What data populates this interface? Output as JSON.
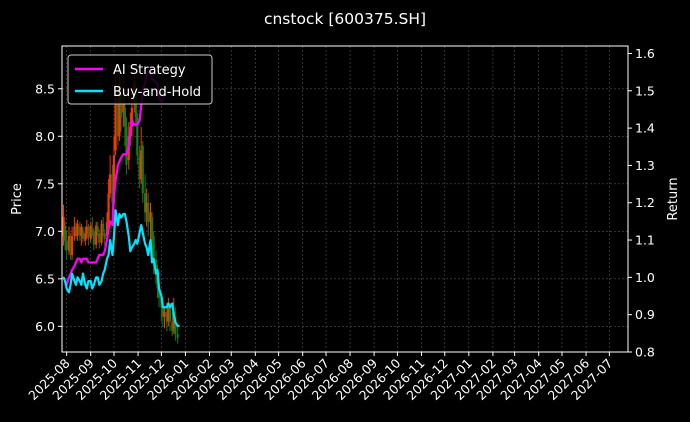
{
  "chart_data": {
    "type": "line",
    "title": "cnstock [600375.SH]",
    "ylabel": "Price",
    "y2label": "Return",
    "ylim": [
      5.73,
      8.95
    ],
    "y2lim": [
      0.8,
      1.62
    ],
    "xlim": [
      "2025-07-26",
      "2027-07-25"
    ],
    "grid": true,
    "legend_position": "top-left",
    "x_tick_labels": [
      "2025-08",
      "2025-09",
      "2025-10",
      "2025-11",
      "2025-12",
      "2026-01",
      "2026-02",
      "2026-03",
      "2026-04",
      "2026-05",
      "2026-06",
      "2026-07",
      "2026-08",
      "2026-09",
      "2026-10",
      "2026-11",
      "2026-12",
      "2027-01",
      "2027-02",
      "2027-03",
      "2027-04",
      "2027-05",
      "2027-06",
      "2027-07"
    ],
    "y_ticks": [
      6.0,
      6.5,
      7.0,
      7.5,
      8.0,
      8.5
    ],
    "y_tick_labels": [
      "6.0",
      "6.5",
      "7.0",
      "7.5",
      "8.0",
      "8.5"
    ],
    "y2_ticks": [
      0.8,
      0.9,
      1.0,
      1.1,
      1.2,
      1.3,
      1.4,
      1.5,
      1.6
    ],
    "y2_tick_labels": [
      "0.8",
      "0.9",
      "1.0",
      "1.1",
      "1.2",
      "1.3",
      "1.4",
      "1.5",
      "1.6"
    ],
    "candles": [
      {
        "date": "2025-07-28",
        "open": 6.95,
        "close": 7.15,
        "high": 7.28,
        "low": 6.85
      },
      {
        "date": "2025-07-30",
        "open": 7.05,
        "close": 6.9,
        "high": 7.1,
        "low": 6.8
      },
      {
        "date": "2025-08-01",
        "open": 6.9,
        "close": 6.8,
        "high": 7.0,
        "low": 6.7
      },
      {
        "date": "2025-08-04",
        "open": 6.8,
        "close": 6.95,
        "high": 7.05,
        "low": 6.75
      },
      {
        "date": "2025-08-06",
        "open": 6.92,
        "close": 6.78,
        "high": 6.98,
        "low": 6.7
      },
      {
        "date": "2025-08-08",
        "open": 6.75,
        "close": 6.95,
        "high": 7.05,
        "low": 6.7
      },
      {
        "date": "2025-08-11",
        "open": 6.95,
        "close": 7.05,
        "high": 7.15,
        "low": 6.9
      },
      {
        "date": "2025-08-13",
        "open": 7.05,
        "close": 6.98,
        "high": 7.1,
        "low": 6.92
      },
      {
        "date": "2025-08-15",
        "open": 6.95,
        "close": 7.08,
        "high": 7.12,
        "low": 6.9
      },
      {
        "date": "2025-08-18",
        "open": 7.05,
        "close": 6.96,
        "high": 7.1,
        "low": 6.9
      },
      {
        "date": "2025-08-20",
        "open": 6.95,
        "close": 7.04,
        "high": 7.08,
        "low": 6.85
      },
      {
        "date": "2025-08-22",
        "open": 7.0,
        "close": 6.92,
        "high": 7.05,
        "low": 6.88
      },
      {
        "date": "2025-08-25",
        "open": 6.9,
        "close": 6.98,
        "high": 7.05,
        "low": 6.85
      },
      {
        "date": "2025-08-27",
        "open": 6.98,
        "close": 7.05,
        "high": 7.12,
        "low": 6.92
      },
      {
        "date": "2025-08-29",
        "open": 7.05,
        "close": 6.94,
        "high": 7.08,
        "low": 6.85
      },
      {
        "date": "2025-09-01",
        "open": 6.92,
        "close": 7.06,
        "high": 7.1,
        "low": 6.88
      },
      {
        "date": "2025-09-03",
        "open": 7.02,
        "close": 7.0,
        "high": 7.15,
        "low": 6.95
      },
      {
        "date": "2025-09-05",
        "open": 7.0,
        "close": 6.86,
        "high": 7.04,
        "low": 6.8
      },
      {
        "date": "2025-09-08",
        "open": 6.86,
        "close": 7.06,
        "high": 7.1,
        "low": 6.82
      },
      {
        "date": "2025-09-10",
        "open": 7.05,
        "close": 7.0,
        "high": 7.1,
        "low": 6.95
      },
      {
        "date": "2025-09-12",
        "open": 6.98,
        "close": 6.88,
        "high": 7.02,
        "low": 6.82
      },
      {
        "date": "2025-09-15",
        "open": 6.88,
        "close": 7.08,
        "high": 7.12,
        "low": 6.85
      },
      {
        "date": "2025-09-17",
        "open": 7.08,
        "close": 7.0,
        "high": 7.15,
        "low": 6.95
      },
      {
        "date": "2025-09-19",
        "open": 6.98,
        "close": 6.92,
        "high": 7.02,
        "low": 6.85
      },
      {
        "date": "2025-09-22",
        "open": 6.95,
        "close": 7.1,
        "high": 7.2,
        "low": 6.9
      },
      {
        "date": "2025-09-24",
        "open": 7.1,
        "close": 7.4,
        "high": 7.55,
        "low": 7.05
      },
      {
        "date": "2025-09-26",
        "open": 7.4,
        "close": 7.6,
        "high": 7.8,
        "low": 7.35
      },
      {
        "date": "2025-09-29",
        "open": 7.6,
        "close": 7.3,
        "high": 7.7,
        "low": 7.2
      },
      {
        "date": "2025-10-01",
        "open": 7.3,
        "close": 7.8,
        "high": 8.0,
        "low": 7.25
      },
      {
        "date": "2025-10-03",
        "open": 7.85,
        "close": 8.4,
        "high": 8.7,
        "low": 7.8
      },
      {
        "date": "2025-10-06",
        "open": 8.4,
        "close": 8.0,
        "high": 8.55,
        "low": 7.9
      },
      {
        "date": "2025-10-08",
        "open": 8.0,
        "close": 8.5,
        "high": 8.75,
        "low": 7.95
      },
      {
        "date": "2025-10-10",
        "open": 8.45,
        "close": 8.2,
        "high": 8.6,
        "low": 8.05
      },
      {
        "date": "2025-10-13",
        "open": 8.25,
        "close": 8.35,
        "high": 8.6,
        "low": 8.1
      },
      {
        "date": "2025-10-15",
        "open": 8.3,
        "close": 8.1,
        "high": 8.45,
        "low": 7.9
      },
      {
        "date": "2025-10-17",
        "open": 8.1,
        "close": 7.7,
        "high": 8.2,
        "low": 7.6
      },
      {
        "date": "2025-10-20",
        "open": 7.75,
        "close": 8.0,
        "high": 8.15,
        "low": 7.65
      },
      {
        "date": "2025-10-22",
        "open": 8.0,
        "close": 8.1,
        "high": 8.25,
        "low": 7.9
      },
      {
        "date": "2025-10-24",
        "open": 8.1,
        "close": 8.3,
        "high": 8.45,
        "low": 8.0
      },
      {
        "date": "2025-10-27",
        "open": 8.35,
        "close": 8.55,
        "high": 8.7,
        "low": 8.25
      },
      {
        "date": "2025-10-29",
        "open": 8.5,
        "close": 8.2,
        "high": 8.6,
        "low": 8.1
      },
      {
        "date": "2025-10-31",
        "open": 8.2,
        "close": 7.8,
        "high": 8.25,
        "low": 7.7
      },
      {
        "date": "2025-11-03",
        "open": 7.8,
        "close": 7.55,
        "high": 7.9,
        "low": 7.45
      },
      {
        "date": "2025-11-05",
        "open": 7.55,
        "close": 7.85,
        "high": 8.1,
        "low": 7.5
      },
      {
        "date": "2025-11-07",
        "open": 7.9,
        "close": 7.4,
        "high": 7.95,
        "low": 7.3
      },
      {
        "date": "2025-11-10",
        "open": 7.4,
        "close": 7.2,
        "high": 7.6,
        "low": 7.1
      },
      {
        "date": "2025-11-12",
        "open": 7.2,
        "close": 7.3,
        "high": 7.45,
        "low": 7.05
      },
      {
        "date": "2025-11-14",
        "open": 7.3,
        "close": 7.1,
        "high": 7.4,
        "low": 6.95
      },
      {
        "date": "2025-11-17",
        "open": 7.1,
        "close": 7.2,
        "high": 7.3,
        "low": 6.9
      },
      {
        "date": "2025-11-19",
        "open": 7.15,
        "close": 6.9,
        "high": 7.2,
        "low": 6.7
      },
      {
        "date": "2025-11-21",
        "open": 6.95,
        "close": 6.7,
        "high": 7.0,
        "low": 6.55
      },
      {
        "date": "2025-11-24",
        "open": 6.7,
        "close": 6.55,
        "high": 6.8,
        "low": 6.45
      },
      {
        "date": "2025-11-26",
        "open": 6.55,
        "close": 6.4,
        "high": 6.65,
        "low": 6.3
      },
      {
        "date": "2025-11-28",
        "open": 6.4,
        "close": 6.3,
        "high": 6.5,
        "low": 6.2
      },
      {
        "date": "2025-12-01",
        "open": 6.3,
        "close": 6.2,
        "high": 6.35,
        "low": 6.05
      },
      {
        "date": "2025-12-03",
        "open": 6.2,
        "close": 6.1,
        "high": 6.3,
        "low": 6.0
      },
      {
        "date": "2025-12-05",
        "open": 6.1,
        "close": 6.15,
        "high": 6.2,
        "low": 5.98
      },
      {
        "date": "2025-12-08",
        "open": 6.15,
        "close": 6.05,
        "high": 6.25,
        "low": 5.95
      },
      {
        "date": "2025-12-10",
        "open": 6.05,
        "close": 6.2,
        "high": 6.3,
        "low": 6.0
      },
      {
        "date": "2025-12-12",
        "open": 6.2,
        "close": 6.05,
        "high": 6.25,
        "low": 5.95
      },
      {
        "date": "2025-12-15",
        "open": 6.05,
        "close": 5.95,
        "high": 6.15,
        "low": 5.9
      },
      {
        "date": "2025-12-17",
        "open": 5.98,
        "close": 6.15,
        "high": 6.3,
        "low": 5.92
      },
      {
        "date": "2025-12-19",
        "open": 6.1,
        "close": 5.92,
        "high": 6.2,
        "low": 5.85
      },
      {
        "date": "2025-12-22",
        "open": 5.92,
        "close": 5.88,
        "high": 6.0,
        "low": 5.82
      }
    ],
    "series": [
      {
        "name": "AI Strategy",
        "color": "#ff00ff",
        "points": [
          [
            "2025-07-28",
            1.0
          ],
          [
            "2025-07-30",
            0.99
          ],
          [
            "2025-08-01",
            0.98
          ],
          [
            "2025-08-04",
            1.0
          ],
          [
            "2025-08-06",
            1.01
          ],
          [
            "2025-08-08",
            1.02
          ],
          [
            "2025-08-11",
            1.03
          ],
          [
            "2025-08-13",
            1.04
          ],
          [
            "2025-08-15",
            1.05
          ],
          [
            "2025-08-18",
            1.05
          ],
          [
            "2025-08-20",
            1.04
          ],
          [
            "2025-08-22",
            1.05
          ],
          [
            "2025-08-25",
            1.05
          ],
          [
            "2025-08-27",
            1.05
          ],
          [
            "2025-08-29",
            1.04
          ],
          [
            "2025-09-01",
            1.04
          ],
          [
            "2025-09-03",
            1.04
          ],
          [
            "2025-09-05",
            1.04
          ],
          [
            "2025-09-08",
            1.04
          ],
          [
            "2025-09-10",
            1.05
          ],
          [
            "2025-09-12",
            1.06
          ],
          [
            "2025-09-15",
            1.06
          ],
          [
            "2025-09-17",
            1.06
          ],
          [
            "2025-09-19",
            1.07
          ],
          [
            "2025-09-22",
            1.1
          ],
          [
            "2025-09-24",
            1.13
          ],
          [
            "2025-09-26",
            1.15
          ],
          [
            "2025-09-29",
            1.14
          ],
          [
            "2025-10-01",
            1.22
          ],
          [
            "2025-10-03",
            1.26
          ],
          [
            "2025-10-06",
            1.3
          ],
          [
            "2025-10-08",
            1.31
          ],
          [
            "2025-10-10",
            1.32
          ],
          [
            "2025-10-13",
            1.33
          ],
          [
            "2025-10-15",
            1.33
          ],
          [
            "2025-10-17",
            1.33
          ],
          [
            "2025-10-20",
            1.35
          ],
          [
            "2025-10-22",
            1.39
          ],
          [
            "2025-10-24",
            1.42
          ],
          [
            "2025-10-27",
            1.41
          ],
          [
            "2025-10-29",
            1.41
          ],
          [
            "2025-10-31",
            1.41
          ],
          [
            "2025-11-03",
            1.42
          ],
          [
            "2025-11-05",
            1.46
          ],
          [
            "2025-11-07",
            1.5
          ],
          [
            "2025-11-10",
            1.52
          ],
          [
            "2025-11-12",
            1.54
          ],
          [
            "2025-11-14",
            1.55
          ],
          [
            "2025-11-17",
            1.55
          ],
          [
            "2025-11-19",
            1.53
          ],
          [
            "2025-11-21",
            1.53
          ],
          [
            "2025-11-24",
            1.52
          ],
          [
            "2025-11-26",
            1.52
          ],
          [
            "2025-11-28",
            1.48
          ],
          [
            "2025-12-01",
            1.47
          ],
          [
            "2025-12-03",
            1.48
          ],
          [
            "2025-12-05",
            1.49
          ]
        ]
      },
      {
        "name": "Buy-and-Hold",
        "color": "#00e5ff",
        "points": [
          [
            "2025-07-28",
            1.0
          ],
          [
            "2025-07-30",
            0.99
          ],
          [
            "2025-08-01",
            0.97
          ],
          [
            "2025-08-04",
            0.96
          ],
          [
            "2025-08-06",
            0.98
          ],
          [
            "2025-08-08",
            1.01
          ],
          [
            "2025-08-11",
            0.99
          ],
          [
            "2025-08-13",
            0.98
          ],
          [
            "2025-08-15",
            1.0
          ],
          [
            "2025-08-18",
            0.99
          ],
          [
            "2025-08-20",
            0.98
          ],
          [
            "2025-08-22",
            1.01
          ],
          [
            "2025-08-25",
            0.98
          ],
          [
            "2025-08-27",
            0.97
          ],
          [
            "2025-08-29",
            0.99
          ],
          [
            "2025-09-01",
            0.99
          ],
          [
            "2025-09-03",
            0.97
          ],
          [
            "2025-09-05",
            0.98
          ],
          [
            "2025-09-08",
            1.0
          ],
          [
            "2025-09-10",
            1.0
          ],
          [
            "2025-09-12",
            0.98
          ],
          [
            "2025-09-15",
            0.99
          ],
          [
            "2025-09-17",
            1.01
          ],
          [
            "2025-09-19",
            1.02
          ],
          [
            "2025-09-22",
            1.05
          ],
          [
            "2025-09-24",
            1.06
          ],
          [
            "2025-09-26",
            1.1
          ],
          [
            "2025-09-29",
            1.06
          ],
          [
            "2025-10-01",
            1.11
          ],
          [
            "2025-10-03",
            1.18
          ],
          [
            "2025-10-06",
            1.14
          ],
          [
            "2025-10-08",
            1.17
          ],
          [
            "2025-10-10",
            1.16
          ],
          [
            "2025-10-13",
            1.17
          ],
          [
            "2025-10-15",
            1.17
          ],
          [
            "2025-10-17",
            1.15
          ],
          [
            "2025-10-20",
            1.11
          ],
          [
            "2025-10-22",
            1.07
          ],
          [
            "2025-10-24",
            1.08
          ],
          [
            "2025-10-27",
            1.09
          ],
          [
            "2025-10-29",
            1.1
          ],
          [
            "2025-10-31",
            1.09
          ],
          [
            "2025-11-03",
            1.12
          ],
          [
            "2025-11-05",
            1.14
          ],
          [
            "2025-11-07",
            1.12
          ],
          [
            "2025-11-10",
            1.09
          ],
          [
            "2025-11-12",
            1.08
          ],
          [
            "2025-11-14",
            1.06
          ],
          [
            "2025-11-17",
            1.1
          ],
          [
            "2025-11-19",
            1.04
          ],
          [
            "2025-11-21",
            1.05
          ],
          [
            "2025-11-24",
            1.01
          ],
          [
            "2025-11-26",
            1.02
          ],
          [
            "2025-11-28",
            0.97
          ],
          [
            "2025-12-01",
            0.95
          ],
          [
            "2025-12-03",
            0.92
          ],
          [
            "2025-12-05",
            0.92
          ],
          [
            "2025-12-08",
            0.92
          ],
          [
            "2025-12-10",
            0.93
          ],
          [
            "2025-12-12",
            0.92
          ],
          [
            "2025-12-15",
            0.93
          ],
          [
            "2025-12-17",
            0.9
          ],
          [
            "2025-12-19",
            0.88
          ],
          [
            "2025-12-22",
            0.87
          ],
          [
            "2025-12-24",
            0.87
          ]
        ]
      }
    ],
    "candle_up_color": "#ff3300",
    "candle_down_color": "#1a7a1a",
    "grid_color": "#555555",
    "background": "#000000",
    "legend": [
      {
        "label": "AI Strategy",
        "color": "#ff00ff"
      },
      {
        "label": "Buy-and-Hold",
        "color": "#00e5ff"
      }
    ]
  }
}
